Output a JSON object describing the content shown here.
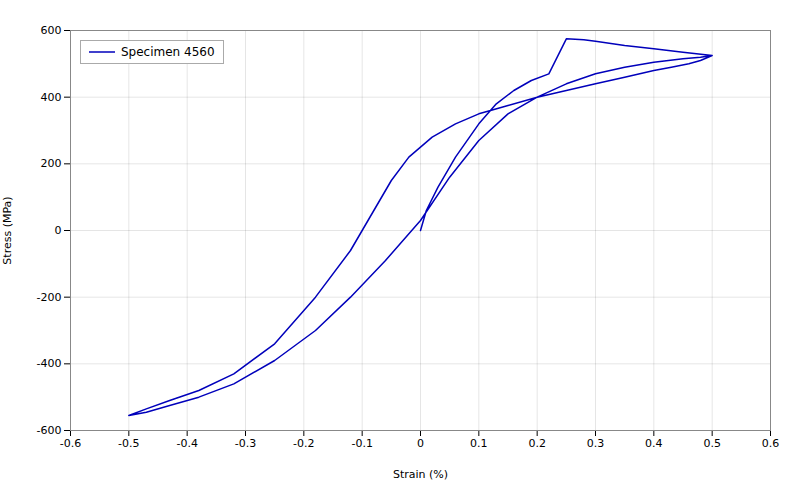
{
  "chart_data": {
    "type": "line",
    "xlabel": "Strain (%)",
    "ylabel": "Stress (MPa)",
    "xlim": [
      -0.6,
      0.6
    ],
    "ylim": [
      -600,
      600
    ],
    "xticks": [
      -0.6,
      -0.5,
      -0.4,
      -0.3,
      -0.2,
      -0.1,
      0,
      0.1,
      0.2,
      0.3,
      0.4,
      0.5,
      0.6
    ],
    "yticks": [
      -600,
      -400,
      -200,
      0,
      200,
      400,
      600
    ],
    "grid": true,
    "legend": "upper left",
    "series": [
      {
        "name": "Specimen 4560",
        "color": "#0000BB",
        "x": [
          0.0,
          0.01,
          0.03,
          0.06,
          0.1,
          0.13,
          0.16,
          0.19,
          0.22,
          0.25,
          0.28,
          0.3,
          0.35,
          0.4,
          0.45,
          0.5,
          0.5,
          0.48,
          0.46,
          0.43,
          0.4,
          0.35,
          0.3,
          0.25,
          0.2,
          0.15,
          0.12,
          0.1,
          0.06,
          0.02,
          -0.02,
          -0.05,
          -0.08,
          -0.12,
          -0.18,
          -0.25,
          -0.32,
          -0.38,
          -0.43,
          -0.47,
          -0.5,
          -0.5,
          -0.47,
          -0.43,
          -0.38,
          -0.32,
          -0.25,
          -0.18,
          -0.12,
          -0.06,
          0.0,
          0.05,
          0.1,
          0.15,
          0.2,
          0.25,
          0.3,
          0.35,
          0.4,
          0.45,
          0.48,
          0.5
        ],
        "values": [
          0,
          60,
          130,
          220,
          320,
          380,
          420,
          450,
          470,
          575,
          572,
          568,
          555,
          545,
          535,
          525,
          525,
          510,
          500,
          490,
          480,
          460,
          440,
          420,
          400,
          375,
          360,
          350,
          320,
          280,
          220,
          150,
          60,
          -60,
          -200,
          -340,
          -430,
          -480,
          -510,
          -535,
          -555,
          -555,
          -545,
          -525,
          -500,
          -460,
          -390,
          -300,
          -200,
          -90,
          30,
          160,
          270,
          350,
          400,
          440,
          470,
          490,
          505,
          515,
          520,
          525
        ]
      }
    ]
  }
}
